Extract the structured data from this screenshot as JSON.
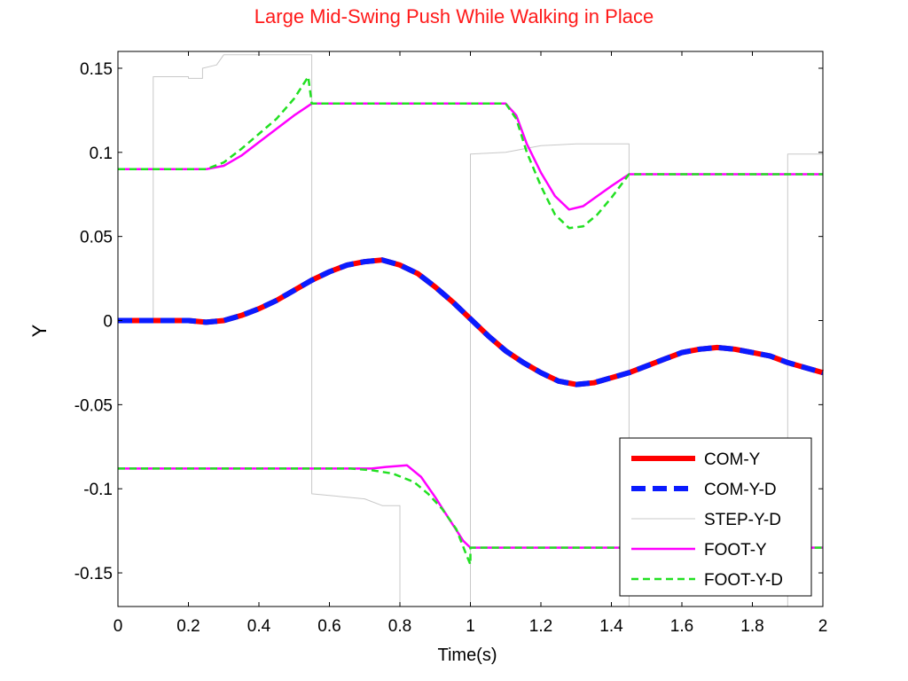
{
  "chart_data": {
    "type": "line",
    "title": "Large Mid-Swing Push While Walking in Place",
    "xlabel": "Time(s)",
    "ylabel": "Y",
    "xlim": [
      0,
      2
    ],
    "ylim": [
      -0.17,
      0.16
    ],
    "xticks": [
      0,
      0.2,
      0.4,
      0.6,
      0.8,
      1,
      1.2,
      1.4,
      1.6,
      1.8,
      2
    ],
    "xtick_labels": [
      "0",
      "0.2",
      "0.4",
      "0.6",
      "0.8",
      "1",
      "1.2",
      "1.4",
      "1.6",
      "1.8",
      "2"
    ],
    "yticks": [
      0.15,
      0.1,
      0.05,
      0,
      -0.05,
      -0.1,
      -0.15
    ],
    "ytick_labels": [
      "0.15",
      "0.1",
      "0.05",
      "0",
      "-0.05",
      "-0.1",
      "-0.15"
    ],
    "grid": false,
    "legend_position": "bottom-right",
    "series": [
      {
        "name": "STEP-Y-D",
        "color": "#c8c8c8",
        "style": "thin-solid",
        "points": [
          [
            0,
            0
          ],
          [
            0.1,
            0
          ],
          [
            0.1,
            0.145
          ],
          [
            0.2,
            0.145
          ],
          [
            0.2,
            0.144
          ],
          [
            0.24,
            0.144
          ],
          [
            0.24,
            0.15
          ],
          [
            0.28,
            0.152
          ],
          [
            0.3,
            0.158
          ],
          [
            0.55,
            0.158
          ],
          [
            0.55,
            -0.103
          ],
          [
            0.7,
            -0.106
          ],
          [
            0.75,
            -0.11
          ],
          [
            0.8,
            -0.11
          ],
          [
            0.8,
            -0.17
          ],
          [
            1,
            -0.17
          ],
          [
            1,
            0.099
          ],
          [
            1.1,
            0.1
          ],
          [
            1.2,
            0.104
          ],
          [
            1.3,
            0.105
          ],
          [
            1.45,
            0.105
          ],
          [
            1.45,
            -0.17
          ],
          [
            1.9,
            -0.17
          ],
          [
            1.9,
            0.099
          ],
          [
            2,
            0.099
          ]
        ]
      },
      {
        "name": "COM-Y",
        "color": "#ff0000",
        "style": "thick-solid",
        "points": [
          [
            0,
            0
          ],
          [
            0.2,
            0
          ],
          [
            0.25,
            -0.001
          ],
          [
            0.3,
            0
          ],
          [
            0.35,
            0.003
          ],
          [
            0.4,
            0.007
          ],
          [
            0.45,
            0.012
          ],
          [
            0.5,
            0.018
          ],
          [
            0.55,
            0.024
          ],
          [
            0.6,
            0.029
          ],
          [
            0.65,
            0.033
          ],
          [
            0.7,
            0.035
          ],
          [
            0.75,
            0.036
          ],
          [
            0.8,
            0.033
          ],
          [
            0.85,
            0.028
          ],
          [
            0.9,
            0.02
          ],
          [
            0.95,
            0.011
          ],
          [
            1,
            0.001
          ],
          [
            1.05,
            -0.009
          ],
          [
            1.1,
            -0.018
          ],
          [
            1.15,
            -0.025
          ],
          [
            1.2,
            -0.031
          ],
          [
            1.25,
            -0.036
          ],
          [
            1.3,
            -0.038
          ],
          [
            1.35,
            -0.037
          ],
          [
            1.4,
            -0.034
          ],
          [
            1.45,
            -0.031
          ],
          [
            1.5,
            -0.027
          ],
          [
            1.55,
            -0.023
          ],
          [
            1.6,
            -0.019
          ],
          [
            1.65,
            -0.017
          ],
          [
            1.7,
            -0.016
          ],
          [
            1.75,
            -0.017
          ],
          [
            1.8,
            -0.019
          ],
          [
            1.85,
            -0.021
          ],
          [
            1.9,
            -0.025
          ],
          [
            1.95,
            -0.028
          ],
          [
            2,
            -0.031
          ]
        ]
      },
      {
        "name": "COM-Y-D",
        "color": "#0a1bff",
        "style": "thick-dashed",
        "points": [
          [
            0,
            0
          ],
          [
            0.2,
            0
          ],
          [
            0.25,
            -0.001
          ],
          [
            0.3,
            0
          ],
          [
            0.35,
            0.003
          ],
          [
            0.4,
            0.007
          ],
          [
            0.45,
            0.012
          ],
          [
            0.5,
            0.018
          ],
          [
            0.55,
            0.024
          ],
          [
            0.6,
            0.029
          ],
          [
            0.65,
            0.033
          ],
          [
            0.7,
            0.035
          ],
          [
            0.75,
            0.036
          ],
          [
            0.8,
            0.033
          ],
          [
            0.85,
            0.028
          ],
          [
            0.9,
            0.02
          ],
          [
            0.95,
            0.011
          ],
          [
            1,
            0.001
          ],
          [
            1.05,
            -0.009
          ],
          [
            1.1,
            -0.018
          ],
          [
            1.15,
            -0.025
          ],
          [
            1.2,
            -0.031
          ],
          [
            1.25,
            -0.036
          ],
          [
            1.3,
            -0.038
          ],
          [
            1.35,
            -0.037
          ],
          [
            1.4,
            -0.034
          ],
          [
            1.45,
            -0.031
          ],
          [
            1.5,
            -0.027
          ],
          [
            1.55,
            -0.023
          ],
          [
            1.6,
            -0.019
          ],
          [
            1.65,
            -0.017
          ],
          [
            1.7,
            -0.016
          ],
          [
            1.75,
            -0.017
          ],
          [
            1.8,
            -0.019
          ],
          [
            1.85,
            -0.021
          ],
          [
            1.9,
            -0.025
          ],
          [
            1.95,
            -0.028
          ],
          [
            2,
            -0.031
          ]
        ]
      },
      {
        "name": "FOOT-Y",
        "color": "#ff00ff",
        "style": "solid",
        "points": [
          [
            0,
            0.09
          ],
          [
            0.25,
            0.09
          ],
          [
            0.3,
            0.092
          ],
          [
            0.35,
            0.098
          ],
          [
            0.4,
            0.106
          ],
          [
            0.45,
            0.114
          ],
          [
            0.5,
            0.122
          ],
          [
            0.55,
            0.129
          ],
          [
            1.1,
            0.129
          ],
          [
            1.13,
            0.122
          ],
          [
            1.16,
            0.105
          ],
          [
            1.2,
            0.088
          ],
          [
            1.24,
            0.074
          ],
          [
            1.28,
            0.066
          ],
          [
            1.32,
            0.068
          ],
          [
            1.36,
            0.074
          ],
          [
            1.4,
            0.08
          ],
          [
            1.45,
            0.087
          ],
          [
            2,
            0.087
          ]
        ]
      },
      {
        "name": "FOOT-Y-D",
        "color": "#22e022",
        "style": "dashed",
        "points": [
          [
            0,
            0.09
          ],
          [
            0.25,
            0.09
          ],
          [
            0.3,
            0.094
          ],
          [
            0.35,
            0.102
          ],
          [
            0.4,
            0.111
          ],
          [
            0.45,
            0.12
          ],
          [
            0.5,
            0.132
          ],
          [
            0.54,
            0.145
          ],
          [
            0.55,
            0.129
          ],
          [
            1.1,
            0.129
          ],
          [
            1.13,
            0.12
          ],
          [
            1.16,
            0.1
          ],
          [
            1.2,
            0.08
          ],
          [
            1.24,
            0.063
          ],
          [
            1.28,
            0.055
          ],
          [
            1.32,
            0.056
          ],
          [
            1.36,
            0.063
          ],
          [
            1.4,
            0.073
          ],
          [
            1.45,
            0.087
          ],
          [
            2,
            0.087
          ]
        ]
      },
      {
        "name": "FOOT-Y",
        "color": "#ff00ff",
        "style": "solid",
        "points": [
          [
            0,
            -0.088
          ],
          [
            0.66,
            -0.088
          ],
          [
            0.72,
            -0.088
          ],
          [
            0.76,
            -0.087
          ],
          [
            0.82,
            -0.086
          ],
          [
            0.86,
            -0.093
          ],
          [
            0.9,
            -0.105
          ],
          [
            0.94,
            -0.118
          ],
          [
            0.98,
            -0.131
          ],
          [
            1,
            -0.135
          ],
          [
            2,
            -0.135
          ]
        ]
      },
      {
        "name": "FOOT-Y-D",
        "color": "#22e022",
        "style": "dashed",
        "points": [
          [
            0,
            -0.088
          ],
          [
            0.66,
            -0.088
          ],
          [
            0.72,
            -0.089
          ],
          [
            0.78,
            -0.091
          ],
          [
            0.84,
            -0.096
          ],
          [
            0.88,
            -0.103
          ],
          [
            0.92,
            -0.112
          ],
          [
            0.96,
            -0.124
          ],
          [
            0.99,
            -0.14
          ],
          [
            1,
            -0.145
          ],
          [
            1,
            -0.135
          ],
          [
            2,
            -0.135
          ]
        ]
      }
    ],
    "legend": [
      {
        "label": "COM-Y",
        "color": "#ff0000",
        "style": "thick-solid"
      },
      {
        "label": "COM-Y-D",
        "color": "#0a1bff",
        "style": "thick-dashed"
      },
      {
        "label": "STEP-Y-D",
        "color": "#c8c8c8",
        "style": "thin-solid"
      },
      {
        "label": "FOOT-Y",
        "color": "#ff00ff",
        "style": "solid"
      },
      {
        "label": "FOOT-Y-D",
        "color": "#22e022",
        "style": "dashed"
      }
    ]
  }
}
